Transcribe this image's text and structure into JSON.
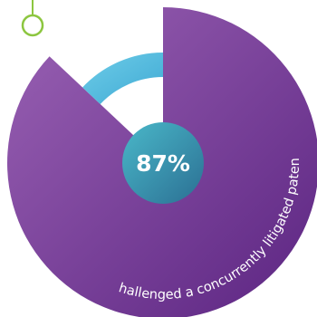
{
  "chart_data": {
    "type": "pie",
    "values": [
      87,
      13
    ],
    "center_label": "87%",
    "caption": "challenged a concurrently litigated patent",
    "colors": {
      "main_start": "#9a62b4",
      "main_end": "#5b2481",
      "rest_start": "#6ecde8",
      "rest_end": "#3fa9d4",
      "center_start": "#4ab8c9",
      "center_end": "#2b6f93",
      "ring_marker": "#8cc63f"
    }
  }
}
